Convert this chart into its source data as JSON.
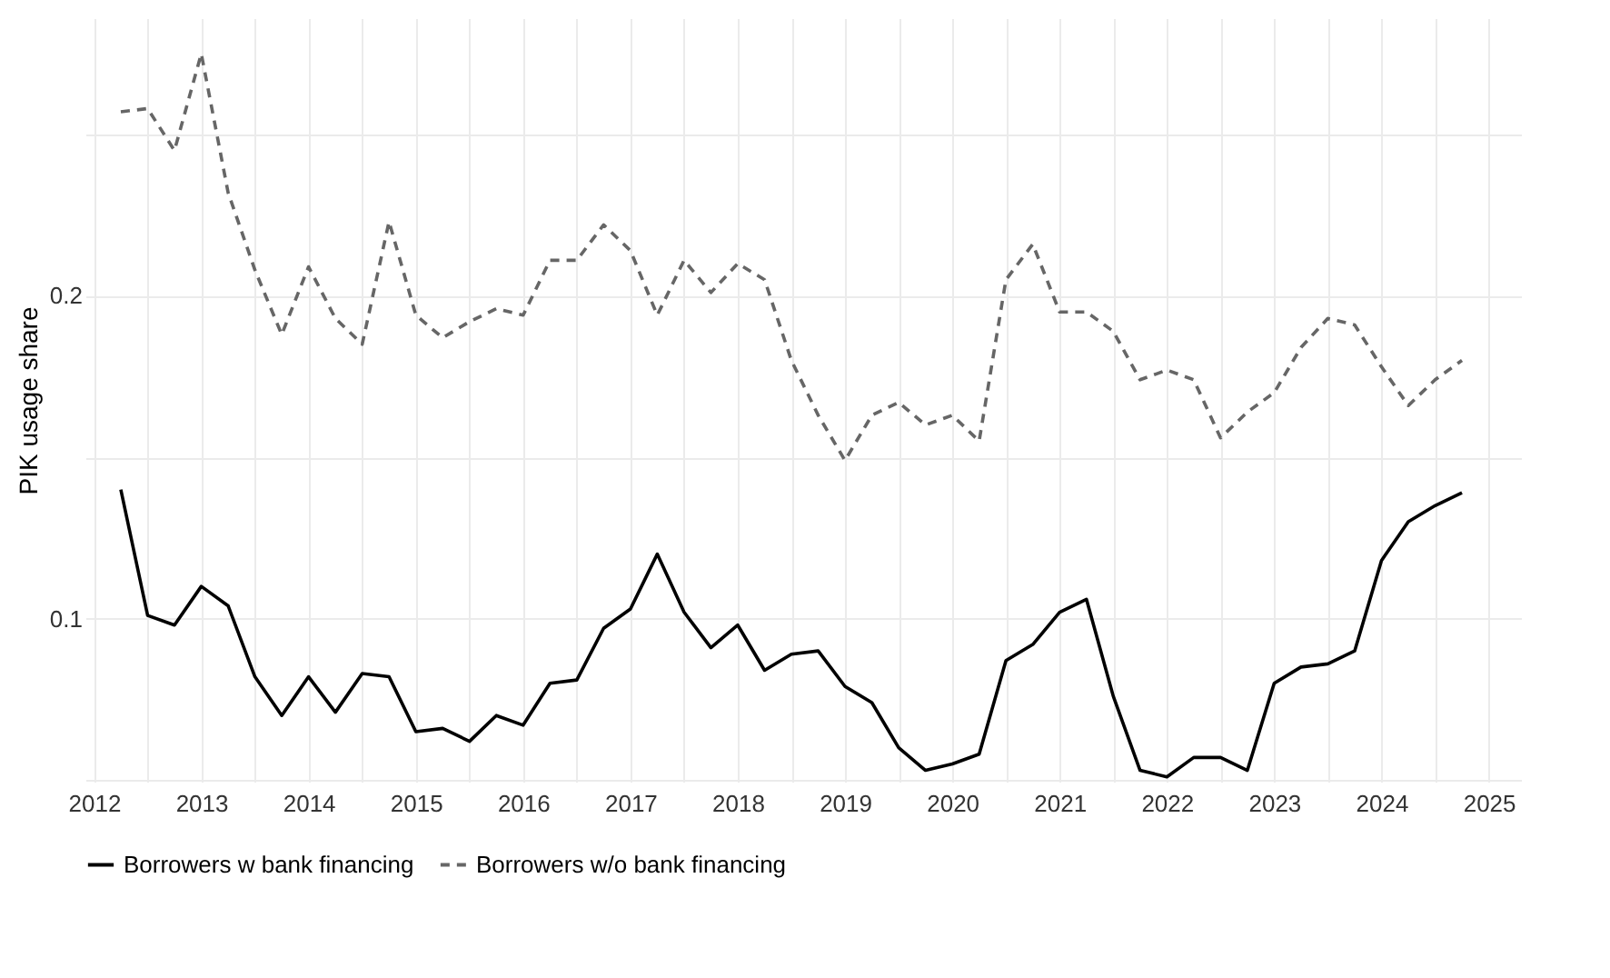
{
  "chart_data": {
    "type": "line",
    "ylabel": "PIK usage share",
    "legend": "bottom",
    "grid": true,
    "x": [
      2012.25,
      2012.5,
      2012.75,
      2013,
      2013.25,
      2013.5,
      2013.75,
      2014,
      2014.25,
      2014.5,
      2014.75,
      2015,
      2015.25,
      2015.5,
      2015.75,
      2016,
      2016.25,
      2016.5,
      2016.75,
      2017,
      2017.25,
      2017.5,
      2017.75,
      2018,
      2018.25,
      2018.5,
      2018.75,
      2019,
      2019.25,
      2019.5,
      2019.75,
      2020,
      2020.25,
      2020.5,
      2020.75,
      2021,
      2021.25,
      2021.5,
      2021.75,
      2022,
      2022.25,
      2022.5,
      2022.75,
      2023,
      2023.25,
      2023.5,
      2023.75,
      2024,
      2024.25,
      2024.5,
      2024.75
    ],
    "series": [
      {
        "name": "Borrowers w bank financing",
        "color": "#000000",
        "line_style": "solid",
        "values": [
          0.14,
          0.101,
          0.098,
          0.11,
          0.104,
          0.082,
          0.07,
          0.082,
          0.071,
          0.083,
          0.082,
          0.065,
          0.066,
          0.062,
          0.07,
          0.067,
          0.08,
          0.081,
          0.097,
          0.103,
          0.12,
          0.102,
          0.091,
          0.098,
          0.084,
          0.089,
          0.09,
          0.079,
          0.074,
          0.06,
          0.053,
          0.055,
          0.058,
          0.087,
          0.092,
          0.102,
          0.106,
          0.076,
          0.053,
          0.051,
          0.057,
          0.057,
          0.053,
          0.08,
          0.085,
          0.086,
          0.09,
          0.118,
          0.13,
          0.135,
          0.139
        ]
      },
      {
        "name": "Borrowers w/o bank financing",
        "color": "#666666",
        "line_style": "dashed",
        "values": [
          0.257,
          0.258,
          0.245,
          0.275,
          0.232,
          0.208,
          0.188,
          0.209,
          0.193,
          0.185,
          0.223,
          0.194,
          0.187,
          0.192,
          0.196,
          0.194,
          0.211,
          0.211,
          0.222,
          0.214,
          0.194,
          0.211,
          0.201,
          0.21,
          0.205,
          0.18,
          0.163,
          0.149,
          0.163,
          0.167,
          0.16,
          0.163,
          0.155,
          0.205,
          0.216,
          0.195,
          0.195,
          0.189,
          0.174,
          0.177,
          0.174,
          0.156,
          0.164,
          0.17,
          0.184,
          0.193,
          0.191,
          0.178,
          0.166,
          0.174,
          0.18
        ]
      }
    ],
    "xlim": [
      2011.92,
      2025.3
    ],
    "xticks": [
      2012,
      {
        "value": 2012.5,
        "label": null
      },
      2013,
      {
        "value": 2013.5,
        "label": null
      },
      2014,
      {
        "value": 2014.5,
        "label": null
      },
      2015,
      {
        "value": 2015.5,
        "label": null
      },
      2016,
      {
        "value": 2016.5,
        "label": null
      },
      2017,
      {
        "value": 2017.5,
        "label": null
      },
      2018,
      {
        "value": 2018.5,
        "label": null
      },
      2019,
      {
        "value": 2019.5,
        "label": null
      },
      2020,
      {
        "value": 2020.5,
        "label": null
      },
      2021,
      {
        "value": 2021.5,
        "label": null
      },
      2022,
      {
        "value": 2022.5,
        "label": null
      },
      2023,
      {
        "value": 2023.5,
        "label": null
      },
      2024,
      {
        "value": 2024.5,
        "label": null
      },
      2025
    ],
    "ylim": [
      0.0495,
      0.286
    ],
    "yticks": [
      {
        "value": 0.05,
        "label": null
      },
      0.1,
      {
        "value": 0.15,
        "label": null
      },
      0.2,
      {
        "value": 0.25,
        "label": null
      }
    ]
  }
}
